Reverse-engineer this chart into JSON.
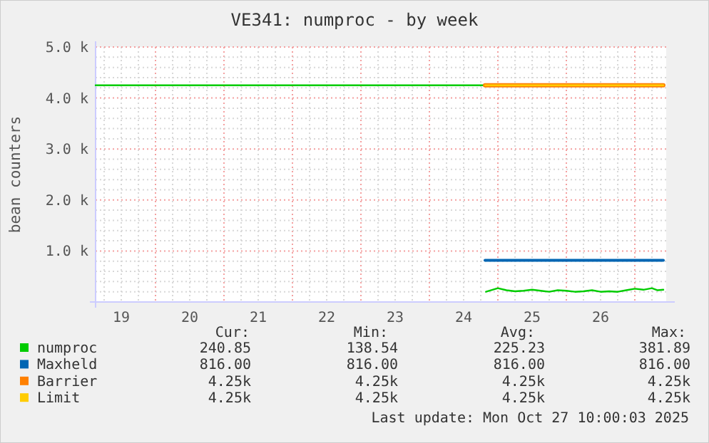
{
  "chart_data": {
    "type": "line",
    "title": "VE341: numproc - by week",
    "ylabel": "bean counters",
    "xlim": [
      "2025-10-19T03:00",
      "2025-10-27T11:00"
    ],
    "xticks": [
      {
        "value": "2025-10-19T12:00",
        "label": "19"
      },
      {
        "value": "2025-10-20T12:00",
        "label": "20"
      },
      {
        "value": "2025-10-21T12:00",
        "label": "21"
      },
      {
        "value": "2025-10-22T12:00",
        "label": "22"
      },
      {
        "value": "2025-10-23T12:00",
        "label": "23"
      },
      {
        "value": "2025-10-24T12:00",
        "label": "24"
      },
      {
        "value": "2025-10-25T12:00",
        "label": "25"
      },
      {
        "value": "2025-10-26T12:00",
        "label": "26"
      }
    ],
    "ylim": [
      0,
      5000
    ],
    "yticks": [
      {
        "value": 1000,
        "label": "1.0 k"
      },
      {
        "value": 2000,
        "label": "2.0 k"
      },
      {
        "value": 3000,
        "label": "3.0 k"
      },
      {
        "value": 4000,
        "label": "4.0 k"
      },
      {
        "value": 5000,
        "label": "5.0 k"
      }
    ],
    "grid": true,
    "legend": "bottom",
    "series": [
      {
        "name": "numproc",
        "color": "#00cc00",
        "x": [
          "2025-10-19T03:00",
          "2025-10-24T19:30",
          "2025-10-24T19:40",
          "2025-10-24T19:50",
          "2025-10-25T00:00",
          "2025-10-25T03:00",
          "2025-10-25T06:00",
          "2025-10-25T09:00",
          "2025-10-25T12:00",
          "2025-10-25T15:00",
          "2025-10-25T18:00",
          "2025-10-25T21:00",
          "2025-10-26T00:00",
          "2025-10-26T03:00",
          "2025-10-26T06:00",
          "2025-10-26T09:00",
          "2025-10-26T12:00",
          "2025-10-26T15:00",
          "2025-10-26T18:00",
          "2025-10-26T21:00",
          "2025-10-27T00:00",
          "2025-10-27T03:00",
          "2025-10-27T06:00",
          "2025-10-27T08:00",
          "2025-10-27T10:00"
        ],
        "values": [
          4250,
          4250,
          null,
          200,
          270,
          230,
          210,
          220,
          240,
          220,
          200,
          230,
          220,
          200,
          210,
          230,
          200,
          210,
          200,
          230,
          260,
          240,
          270,
          230,
          240
        ]
      },
      {
        "name": "Maxheld",
        "color": "#0066b3",
        "x": [
          "2025-10-24T19:30",
          "2025-10-27T10:00"
        ],
        "values": [
          816,
          816
        ]
      },
      {
        "name": "Barrier",
        "color": "#ff8000",
        "x": [
          "2025-10-24T19:30",
          "2025-10-27T10:00"
        ],
        "values": [
          4250,
          4250
        ]
      },
      {
        "name": "Limit",
        "color": "#ffcc00",
        "x": [
          "2025-10-24T19:30",
          "2025-10-27T10:00"
        ],
        "values": [
          4250,
          4250
        ]
      }
    ],
    "annotations": [
      "Cur:",
      "Min:",
      "Avg:",
      "Max:",
      "240.85",
      "138.54",
      "225.23",
      "381.89",
      "816.00",
      "816.00",
      "816.00",
      "816.00",
      "4.25k",
      "4.25k",
      "4.25k",
      "4.25k",
      "4.25k",
      "4.25k",
      "4.25k",
      "4.25k",
      "Last update: Mon Oct 27 10:00:03 2025"
    ]
  }
}
